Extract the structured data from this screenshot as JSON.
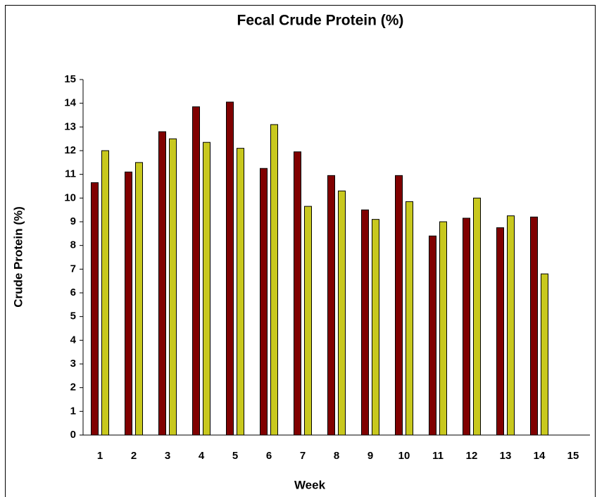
{
  "chart_data": {
    "type": "bar",
    "title": "Fecal Crude Protein (%)",
    "x_label": "Week",
    "y_label": "Crude Protein (%)",
    "categories": [
      "1",
      "2",
      "3",
      "4",
      "5",
      "6",
      "7",
      "8",
      "9",
      "10",
      "11",
      "12",
      "13",
      "14",
      "15"
    ],
    "series": [
      {
        "color": "#800000",
        "values": [
          10.65,
          11.1,
          12.8,
          13.85,
          14.05,
          11.25,
          11.95,
          10.95,
          9.5,
          10.95,
          8.4,
          9.15,
          8.75,
          9.2,
          null
        ]
      },
      {
        "color": "#c8c81e",
        "values": [
          12.0,
          11.5,
          12.5,
          12.35,
          12.1,
          13.1,
          9.65,
          10.3,
          9.1,
          9.85,
          9.0,
          10.0,
          9.25,
          6.8,
          null
        ]
      }
    ],
    "ylim": [
      0,
      15
    ],
    "yticks": [
      0,
      1,
      2,
      3,
      4,
      5,
      6,
      7,
      8,
      9,
      10,
      11,
      12,
      13,
      14,
      15
    ],
    "grid": false
  }
}
